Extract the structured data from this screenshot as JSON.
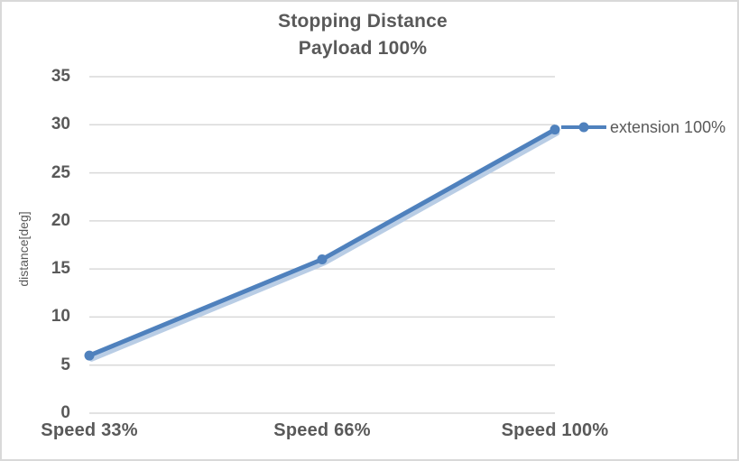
{
  "title": {
    "line1": "Stopping Distance",
    "line2": "Payload 100%"
  },
  "chart_data": {
    "type": "line",
    "title": "Stopping Distance Payload 100%",
    "categories": [
      "Speed 33%",
      "Speed 66%",
      "Speed 100%"
    ],
    "series": [
      {
        "name": "extension 100%",
        "values": [
          6,
          16,
          29.5
        ]
      }
    ],
    "xlabel": "",
    "ylabel": "distance[deg]",
    "ylim": [
      0,
      35
    ],
    "yticks": [
      0,
      5,
      10,
      15,
      20,
      25,
      30,
      35
    ],
    "ytick_step": 5,
    "grid": true,
    "legend_position": "right",
    "marker": "circle"
  },
  "colors": {
    "series": "#4F81BD",
    "series_shadow": "#B9CDE5",
    "gridline": "#D9D9D9",
    "text": "#595959",
    "chart_border": "#D9D9D9",
    "background": "#FFFFFF"
  }
}
